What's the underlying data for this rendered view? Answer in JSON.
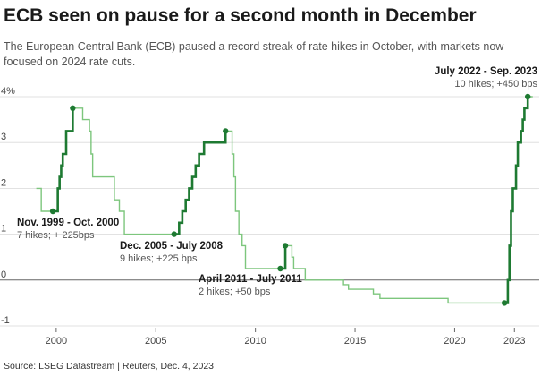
{
  "header": {
    "title": "ECB seen on pause for a second month in December",
    "subtitle": "The European Central Bank (ECB) paused a record streak of rate hikes in October, with markets now focused on 2024 rate cuts."
  },
  "footer": {
    "source": "Source: LSEG Datastream | Reuters, Dec. 4, 2023"
  },
  "chart_data": {
    "type": "line",
    "title": "",
    "xlabel": "",
    "ylabel": "",
    "xlim": [
      1998.3,
      2024.2
    ],
    "ylim": [
      -1,
      4
    ],
    "grid": true,
    "y_ticks": [
      {
        "value": 4,
        "label": "4%"
      },
      {
        "value": 3,
        "label": "3"
      },
      {
        "value": 2,
        "label": "2"
      },
      {
        "value": 1,
        "label": "1"
      },
      {
        "value": 0,
        "label": "0"
      },
      {
        "value": -1,
        "label": "-1"
      }
    ],
    "x_ticks": [
      {
        "value": 2000,
        "label": "2000"
      },
      {
        "value": 2005,
        "label": "2005"
      },
      {
        "value": 2010,
        "label": "2010"
      },
      {
        "value": 2015,
        "label": "2015"
      },
      {
        "value": 2020,
        "label": "2020"
      },
      {
        "value": 2023,
        "label": "2023"
      }
    ],
    "colors": {
      "base": "#7dc67d",
      "hike": "#1e7a32",
      "zero_line": "#666666",
      "grid": "#d9d9d9"
    },
    "series": [
      {
        "points": [
          [
            1999.0,
            2.0
          ],
          [
            1999.25,
            2.0
          ],
          [
            1999.25,
            1.5
          ],
          [
            1999.83,
            1.5
          ],
          [
            2000.08,
            2.0
          ],
          [
            2000.17,
            2.25
          ],
          [
            2000.25,
            2.5
          ],
          [
            2000.33,
            2.75
          ],
          [
            2000.5,
            3.25
          ],
          [
            2000.83,
            3.75
          ],
          [
            2001.33,
            3.5
          ],
          [
            2001.67,
            3.25
          ],
          [
            2001.75,
            2.75
          ],
          [
            2001.83,
            2.25
          ],
          [
            2002.92,
            2.25
          ],
          [
            2002.92,
            1.75
          ],
          [
            2003.17,
            1.5
          ],
          [
            2003.42,
            1.0
          ],
          [
            2005.92,
            1.0
          ],
          [
            2006.17,
            1.25
          ],
          [
            2006.33,
            1.5
          ],
          [
            2006.5,
            1.75
          ],
          [
            2006.67,
            2.0
          ],
          [
            2006.83,
            2.25
          ],
          [
            2007.0,
            2.5
          ],
          [
            2007.17,
            2.75
          ],
          [
            2007.42,
            3.0
          ],
          [
            2008.5,
            3.25
          ],
          [
            2008.75,
            3.25
          ],
          [
            2008.83,
            2.75
          ],
          [
            2008.92,
            2.25
          ],
          [
            2009.0,
            1.5
          ],
          [
            2009.17,
            1.0
          ],
          [
            2009.33,
            0.75
          ],
          [
            2009.5,
            0.25
          ],
          [
            2011.25,
            0.25
          ],
          [
            2011.5,
            0.75
          ],
          [
            2011.83,
            0.5
          ],
          [
            2011.92,
            0.25
          ],
          [
            2012.5,
            0.0
          ],
          [
            2014.42,
            -0.1
          ],
          [
            2014.67,
            -0.2
          ],
          [
            2015.92,
            -0.3
          ],
          [
            2016.25,
            -0.4
          ],
          [
            2019.67,
            -0.5
          ],
          [
            2022.5,
            -0.5
          ],
          [
            2022.67,
            0.0
          ],
          [
            2022.75,
            0.75
          ],
          [
            2022.83,
            1.5
          ],
          [
            2022.92,
            2.0
          ],
          [
            2023.08,
            2.5
          ],
          [
            2023.17,
            3.0
          ],
          [
            2023.33,
            3.25
          ],
          [
            2023.42,
            3.5
          ],
          [
            2023.5,
            3.75
          ],
          [
            2023.67,
            4.0
          ],
          [
            2023.92,
            4.0
          ]
        ]
      }
    ],
    "hike_periods": [
      {
        "start": 1999.83,
        "end": 2000.83,
        "label": "Nov. 1999 - Oct. 2000",
        "detail": "7 hikes; + 225bps"
      },
      {
        "start": 2005.92,
        "end": 2008.5,
        "label": "Dec. 2005 - July 2008",
        "detail": "9 hikes; +225 bps"
      },
      {
        "start": 2011.25,
        "end": 2011.5,
        "label": "April 2011 - July 2011",
        "detail": "2 hikes; +50 bps"
      },
      {
        "start": 2022.5,
        "end": 2023.67,
        "label": "July 2022 - Sep. 2023",
        "detail": "10 hikes; +450 bps"
      }
    ]
  }
}
